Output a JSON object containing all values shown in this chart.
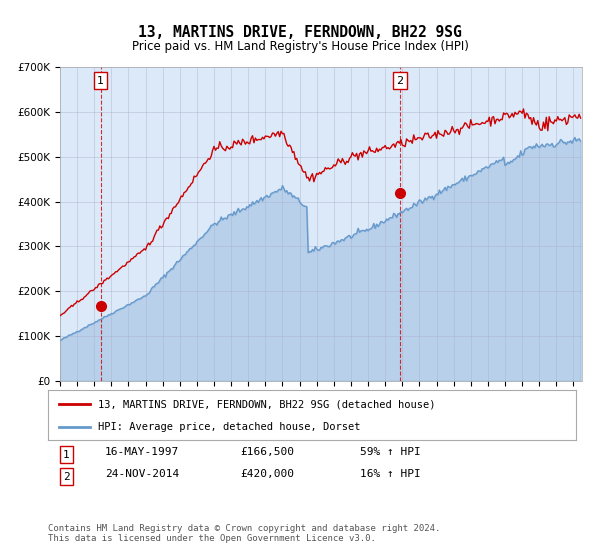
{
  "title": "13, MARTINS DRIVE, FERNDOWN, BH22 9SG",
  "subtitle": "Price paid vs. HM Land Registry's House Price Index (HPI)",
  "red_label": "13, MARTINS DRIVE, FERNDOWN, BH22 9SG (detached house)",
  "blue_label": "HPI: Average price, detached house, Dorset",
  "transaction1_date": "16-MAY-1997",
  "transaction1_price": 166500,
  "transaction1_hpi": "59% ↑ HPI",
  "transaction2_date": "24-NOV-2014",
  "transaction2_price": 420000,
  "transaction2_hpi": "16% ↑ HPI",
  "footnote": "Contains HM Land Registry data © Crown copyright and database right 2024.\nThis data is licensed under the Open Government Licence v3.0.",
  "plot_bg_color": "#dce9f8",
  "red_color": "#cc0000",
  "blue_color": "#6699cc",
  "ylim": [
    0,
    700000
  ],
  "xlim_start": 1995.0,
  "xlim_end": 2025.5
}
